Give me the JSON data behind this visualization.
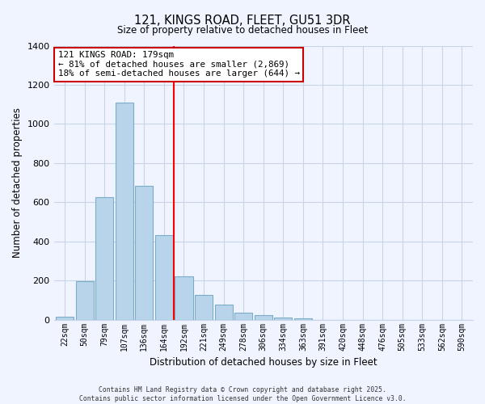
{
  "title_line1": "121, KINGS ROAD, FLEET, GU51 3DR",
  "title_line2": "Size of property relative to detached houses in Fleet",
  "xlabel": "Distribution of detached houses by size in Fleet",
  "ylabel": "Number of detached properties",
  "bar_labels": [
    "22sqm",
    "50sqm",
    "79sqm",
    "107sqm",
    "136sqm",
    "164sqm",
    "192sqm",
    "221sqm",
    "249sqm",
    "278sqm",
    "306sqm",
    "334sqm",
    "363sqm",
    "391sqm",
    "420sqm",
    "448sqm",
    "476sqm",
    "505sqm",
    "533sqm",
    "562sqm",
    "590sqm"
  ],
  "bar_values": [
    15,
    195,
    625,
    1110,
    685,
    430,
    220,
    125,
    75,
    35,
    25,
    10,
    5,
    0,
    0,
    0,
    0,
    0,
    0,
    0,
    0
  ],
  "bar_color": "#b8d4ea",
  "bar_edge_color": "#7aaec8",
  "vline_x": 5.5,
  "vline_color": "red",
  "annotation_title": "121 KINGS ROAD: 179sqm",
  "annotation_line2": "← 81% of detached houses are smaller (2,869)",
  "annotation_line3": "18% of semi-detached houses are larger (644) →",
  "annotation_box_facecolor": "white",
  "annotation_box_edgecolor": "#cc0000",
  "ylim": [
    0,
    1400
  ],
  "yticks": [
    0,
    200,
    400,
    600,
    800,
    1000,
    1200,
    1400
  ],
  "footer_line1": "Contains HM Land Registry data © Crown copyright and database right 2025.",
  "footer_line2": "Contains public sector information licensed under the Open Government Licence v3.0.",
  "background_color": "#f0f4ff",
  "grid_color": "#c8d4e8"
}
